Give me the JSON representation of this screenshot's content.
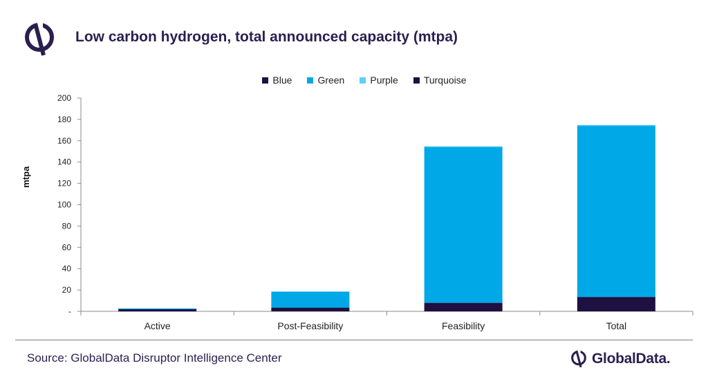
{
  "header": {
    "title": "Low carbon hydrogen, total announced capacity (mtpa)"
  },
  "footer": {
    "source": "Source: GlobalData Disruptor Intelligence Center",
    "brand": "GlobalData."
  },
  "colors": {
    "Blue": "#1e1040",
    "Green": "#00a8e8",
    "Purple": "#5fd0f7",
    "Turquoise": "#1e1040",
    "text": "#2b1f4f"
  },
  "chart_data": {
    "type": "bar",
    "stacked": true,
    "title": "Low carbon hydrogen, total announced capacity (mtpa)",
    "ylabel": "mtpa",
    "xlabel": "",
    "ylim": [
      0,
      200
    ],
    "yticks": [
      "-",
      "20",
      "40",
      "60",
      "80",
      "100",
      "120",
      "140",
      "160",
      "180",
      "200"
    ],
    "categories": [
      "Active",
      "Post-Feasibility",
      "Feasibility",
      "Total"
    ],
    "series": [
      {
        "name": "Blue",
        "values": [
          2,
          3.5,
          8,
          13.5
        ]
      },
      {
        "name": "Green",
        "values": [
          0.3,
          15,
          146,
          160.5
        ]
      },
      {
        "name": "Purple",
        "values": [
          0,
          0,
          0.3,
          0.3
        ]
      },
      {
        "name": "Turquoise",
        "values": [
          0,
          0,
          0,
          0
        ]
      }
    ],
    "legend": "top",
    "grid": false
  }
}
